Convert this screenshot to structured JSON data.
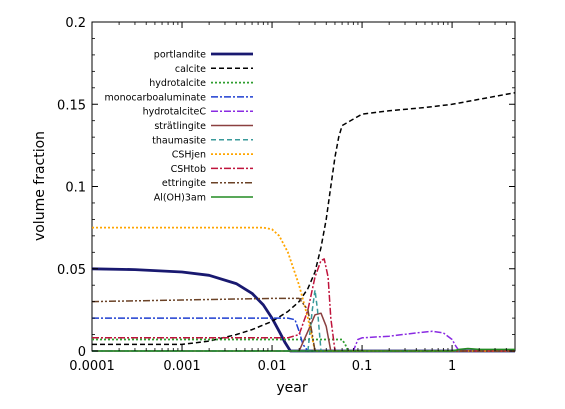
{
  "chart_data": {
    "type": "line",
    "xlabel": "year",
    "ylabel": "volume fraction",
    "xscale": "log",
    "xlim": [
      0.0001,
      5
    ],
    "ylim": [
      0,
      0.2
    ],
    "xticks": [
      0.0001,
      0.001,
      0.01,
      0.1,
      1
    ],
    "xtick_labels": [
      "0.0001",
      "0.001",
      "0.01",
      "0.1",
      "1"
    ],
    "yticks": [
      0,
      0.05,
      0.1,
      0.15,
      0.2
    ],
    "ytick_labels": [
      "0",
      "0.05",
      "0.1",
      "0.15",
      "0.2"
    ],
    "legend_position": "top-left",
    "grid": false,
    "series": [
      {
        "name": "portlandite",
        "color": "#191970",
        "dash": "solid",
        "width": 2.8,
        "x": [
          0.0001,
          0.0003,
          0.001,
          0.002,
          0.004,
          0.006,
          0.008,
          0.01,
          0.012,
          0.014,
          0.016,
          5
        ],
        "y": [
          0.05,
          0.0495,
          0.048,
          0.046,
          0.041,
          0.035,
          0.028,
          0.02,
          0.012,
          0.005,
          0.0,
          0.0
        ]
      },
      {
        "name": "calcite",
        "color": "#000000",
        "dash": "5,3",
        "width": 1.5,
        "x": [
          0.0001,
          0.0005,
          0.001,
          0.002,
          0.004,
          0.006,
          0.01,
          0.015,
          0.02,
          0.025,
          0.03,
          0.035,
          0.04,
          0.045,
          0.05,
          0.055,
          0.06,
          0.08,
          0.1,
          0.2,
          0.5,
          1,
          2,
          5
        ],
        "y": [
          0.004,
          0.004,
          0.004,
          0.006,
          0.01,
          0.013,
          0.018,
          0.024,
          0.03,
          0.038,
          0.048,
          0.063,
          0.08,
          0.1,
          0.118,
          0.13,
          0.137,
          0.141,
          0.144,
          0.146,
          0.148,
          0.15,
          0.153,
          0.157
        ]
      },
      {
        "name": "hydrotalcite",
        "color": "#2e9e2e",
        "dash": "2,2",
        "width": 1.8,
        "x": [
          0.0001,
          0.001,
          0.01,
          0.05,
          0.06,
          0.065,
          0.07,
          5
        ],
        "y": [
          0.007,
          0.007,
          0.007,
          0.007,
          0.007,
          0.004,
          0.0,
          0.0
        ]
      },
      {
        "name": "monocarboaluminate",
        "color": "#1f3fd0",
        "dash": "7,2,2,2",
        "width": 1.5,
        "x": [
          0.0001,
          0.001,
          0.01,
          0.015,
          0.018,
          0.02,
          0.022,
          0.025,
          5
        ],
        "y": [
          0.02,
          0.02,
          0.02,
          0.02,
          0.019,
          0.012,
          0.004,
          0.0,
          0.0
        ]
      },
      {
        "name": "hydrotalciteC",
        "color": "#8a2be2",
        "dash": "7,2,2,2",
        "width": 1.5,
        "x": [
          0.0001,
          0.08,
          0.09,
          0.1,
          0.2,
          0.4,
          0.6,
          0.8,
          1.0,
          1.1,
          1.2,
          5
        ],
        "y": [
          0.0,
          0.0,
          0.007,
          0.008,
          0.009,
          0.011,
          0.012,
          0.011,
          0.007,
          0.003,
          0.0,
          0.0
        ]
      },
      {
        "name": "strätlingite",
        "color": "#8b4040",
        "dash": "solid",
        "width": 1.5,
        "x": [
          0.0001,
          0.02,
          0.025,
          0.03,
          0.035,
          0.04,
          0.045,
          5
        ],
        "y": [
          0.0,
          0.0,
          0.012,
          0.022,
          0.023,
          0.015,
          0.0,
          0.0
        ]
      },
      {
        "name": "thaumasite",
        "color": "#3a9a9a",
        "dash": "5,3",
        "width": 1.5,
        "x": [
          0.0001,
          0.025,
          0.028,
          0.03,
          0.032,
          0.035,
          5
        ],
        "y": [
          0.0,
          0.0,
          0.025,
          0.037,
          0.025,
          0.0,
          0.0
        ]
      },
      {
        "name": "CSHjen",
        "color": "#ffa500",
        "dash": "2,2",
        "width": 1.8,
        "x": [
          0.0001,
          0.001,
          0.005,
          0.008,
          0.01,
          0.012,
          0.015,
          0.02,
          0.025,
          0.03,
          5
        ],
        "y": [
          0.075,
          0.075,
          0.075,
          0.075,
          0.074,
          0.07,
          0.06,
          0.04,
          0.02,
          0.0,
          0.0
        ]
      },
      {
        "name": "CSHtob",
        "color": "#c0143c",
        "dash": "7,2,2,2",
        "width": 1.5,
        "x": [
          0.0001,
          0.005,
          0.015,
          0.02,
          0.025,
          0.03,
          0.035,
          0.038,
          0.042,
          0.045,
          0.05,
          5
        ],
        "y": [
          0.008,
          0.008,
          0.008,
          0.01,
          0.025,
          0.045,
          0.055,
          0.056,
          0.045,
          0.02,
          0.0,
          0.0
        ]
      },
      {
        "name": "ettringite",
        "color": "#6b4226",
        "dash": "7,2,2,2,2,2",
        "width": 1.5,
        "x": [
          0.0001,
          0.001,
          0.01,
          0.02,
          0.025,
          0.028,
          0.03,
          5
        ],
        "y": [
          0.03,
          0.031,
          0.032,
          0.032,
          0.025,
          0.01,
          0.0,
          0.0
        ]
      },
      {
        "name": "Al(OH)3am",
        "color": "#228b22",
        "dash": "solid",
        "width": 1.5,
        "x": [
          0.0001,
          1,
          1.2,
          1.5,
          2,
          5
        ],
        "y": [
          0.0,
          0.0,
          0.001,
          0.0015,
          0.001,
          0.001
        ]
      }
    ]
  }
}
